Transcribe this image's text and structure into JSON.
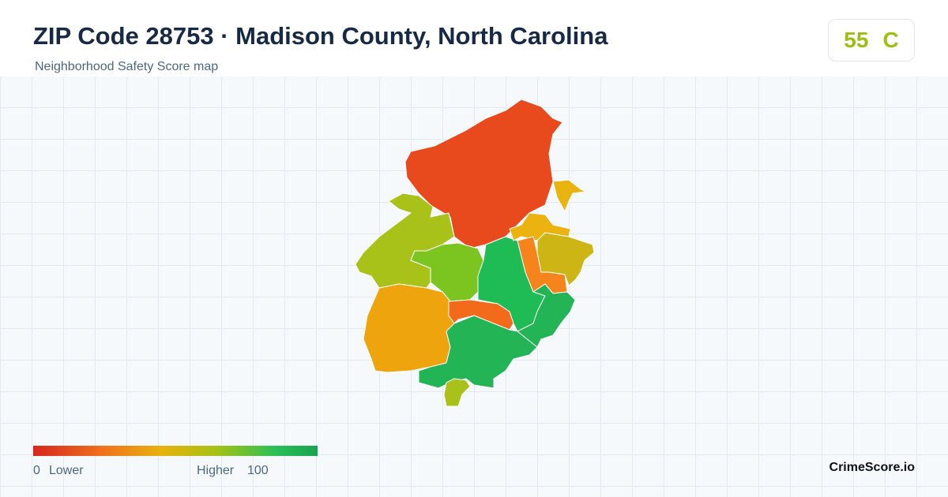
{
  "header": {
    "title": "ZIP Code 28753 · Madison County, North Carolina",
    "subtitle": "Neighborhood Safety Score map"
  },
  "score": {
    "value": 55,
    "grade": "C"
  },
  "legend": {
    "min": 0,
    "min_label": "Lower",
    "max_label": "Higher",
    "max": 100
  },
  "brand": "CrimeScore.io"
}
